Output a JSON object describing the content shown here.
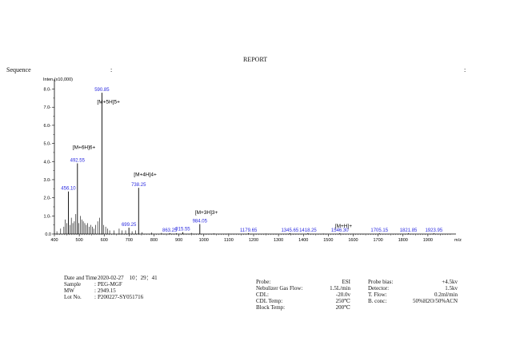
{
  "report_title": "REPORT",
  "sequence": {
    "label": "Sequence",
    "sep": ":",
    "trailing": ":"
  },
  "chart_data": {
    "type": "bar",
    "title": "",
    "xlabel": "m/z",
    "ylabel": "Inten.(x10,000)",
    "xlim": [
      400,
      2000
    ],
    "ylim": [
      0,
      8.2
    ],
    "x_ticks": [
      400,
      500,
      600,
      700,
      800,
      900,
      1000,
      1100,
      1200,
      1300,
      1400,
      1500,
      1600,
      1700,
      1800,
      1900
    ],
    "x_tick_labels": [
      "400",
      "500",
      "600",
      "700",
      "800",
      "900",
      "1000",
      "1100",
      "1200",
      "1300",
      "1400",
      "1500",
      "1600",
      "1700",
      "1800",
      "1900"
    ],
    "y_ticks": [
      0.0,
      1.0,
      2.0,
      3.0,
      4.0,
      5.0,
      6.0,
      7.0,
      8.0
    ],
    "y_tick_labels": [
      "0.0",
      "1.0-",
      "2.0-",
      "3.0-",
      "4.0-",
      "5.0-",
      "6.0-",
      "7.0-",
      "8.0-"
    ],
    "peaks": [
      {
        "x": 456.1,
        "y": 2.35,
        "label": "456.10"
      },
      {
        "x": 492.55,
        "y": 3.9,
        "label": "492.55"
      },
      {
        "x": 590.85,
        "y": 7.8,
        "label": "590.85"
      },
      {
        "x": 699.25,
        "y": 0.35,
        "label": "699.25"
      },
      {
        "x": 738.25,
        "y": 2.55,
        "label": "738.25"
      },
      {
        "x": 863.25,
        "y": 0.05,
        "label": "863.25"
      },
      {
        "x": 915.55,
        "y": 0.1,
        "label": "915.55"
      },
      {
        "x": 984.05,
        "y": 0.55,
        "label": "984.05"
      },
      {
        "x": 1179.65,
        "y": 0.05,
        "label": "1179.65"
      },
      {
        "x": 1345.65,
        "y": 0.05,
        "label": "1345.65"
      },
      {
        "x": 1418.25,
        "y": 0.05,
        "label": "1418.25"
      },
      {
        "x": 1546.3,
        "y": 0.05,
        "label": "1546.30"
      },
      {
        "x": 1705.15,
        "y": 0.04,
        "label": "1705.15"
      },
      {
        "x": 1821.85,
        "y": 0.04,
        "label": "1821.85"
      },
      {
        "x": 1923.95,
        "y": 0.04,
        "label": "1923.95"
      }
    ],
    "minor_peaks": [
      {
        "x": 410,
        "y": 0.15
      },
      {
        "x": 425,
        "y": 0.3
      },
      {
        "x": 438,
        "y": 0.4
      },
      {
        "x": 444,
        "y": 0.8
      },
      {
        "x": 450,
        "y": 0.6
      },
      {
        "x": 462,
        "y": 0.5
      },
      {
        "x": 468,
        "y": 0.9
      },
      {
        "x": 474,
        "y": 0.6
      },
      {
        "x": 480,
        "y": 0.7
      },
      {
        "x": 486,
        "y": 1.1
      },
      {
        "x": 498,
        "y": 0.6
      },
      {
        "x": 504,
        "y": 1.0
      },
      {
        "x": 510,
        "y": 0.8
      },
      {
        "x": 516,
        "y": 0.7
      },
      {
        "x": 522,
        "y": 0.6
      },
      {
        "x": 528,
        "y": 0.5
      },
      {
        "x": 534,
        "y": 0.6
      },
      {
        "x": 540,
        "y": 0.4
      },
      {
        "x": 546,
        "y": 0.5
      },
      {
        "x": 552,
        "y": 0.4
      },
      {
        "x": 558,
        "y": 0.3
      },
      {
        "x": 566,
        "y": 0.5
      },
      {
        "x": 574,
        "y": 0.7
      },
      {
        "x": 582,
        "y": 0.9
      },
      {
        "x": 598,
        "y": 0.5
      },
      {
        "x": 606,
        "y": 0.4
      },
      {
        "x": 614,
        "y": 0.3
      },
      {
        "x": 622,
        "y": 0.2
      },
      {
        "x": 640,
        "y": 0.2
      },
      {
        "x": 660,
        "y": 0.3
      },
      {
        "x": 672,
        "y": 0.2
      },
      {
        "x": 686,
        "y": 0.2
      },
      {
        "x": 712,
        "y": 0.15
      },
      {
        "x": 726,
        "y": 0.2
      },
      {
        "x": 752,
        "y": 0.1
      },
      {
        "x": 790,
        "y": 0.08
      },
      {
        "x": 830,
        "y": 0.06
      },
      {
        "x": 890,
        "y": 0.05
      },
      {
        "x": 950,
        "y": 0.06
      },
      {
        "x": 1040,
        "y": 0.04
      },
      {
        "x": 1100,
        "y": 0.03
      },
      {
        "x": 1250,
        "y": 0.03
      },
      {
        "x": 1480,
        "y": 0.03
      },
      {
        "x": 1600,
        "y": 0.02
      }
    ],
    "annotations": [
      {
        "text": "[M+5H]5+",
        "x": 590.85,
        "y": 7.2
      },
      {
        "text": "[M+6H]6+",
        "x": 492.55,
        "y": 4.7
      },
      {
        "text": "[M+4H]4+",
        "x": 738.25,
        "y": 3.2
      },
      {
        "text": "[M+3H]3+",
        "x": 984.05,
        "y": 1.1
      },
      {
        "text": "[M+H]+",
        "x": 1546.3,
        "y": 0.35
      }
    ]
  },
  "sample_info": [
    {
      "label": "Date and Time",
      "sep": ":",
      "value": "2020-02-27    10：29：41"
    },
    {
      "label": "Sample",
      "sep": ":",
      "value": "PEG-MGF"
    },
    {
      "label": "MW",
      "sep": ":",
      "value": "2949.15"
    },
    {
      "label": "Lot No.",
      "sep": ":",
      "value": "P200227-SY051716"
    }
  ],
  "params_left": [
    {
      "label": "Probe:",
      "value": "ESI"
    },
    {
      "label": "Nebulizer Gas Flow:",
      "value": "1.5L/min"
    },
    {
      "label": "CDL:",
      "value": "-20.0v"
    },
    {
      "label": "CDL Temp:",
      "value": "250℃"
    },
    {
      "label": "Block Temp:",
      "value": "200℃"
    }
  ],
  "params_right": [
    {
      "label": "Probe bias:",
      "value": "+4.5kv"
    },
    {
      "label": "Detector:",
      "value": "1.5kv"
    },
    {
      "label": "T. Flow:",
      "value": "0.2ml/min"
    },
    {
      "label": "B. conc:",
      "value": "50%H2O/50%ACN"
    }
  ]
}
